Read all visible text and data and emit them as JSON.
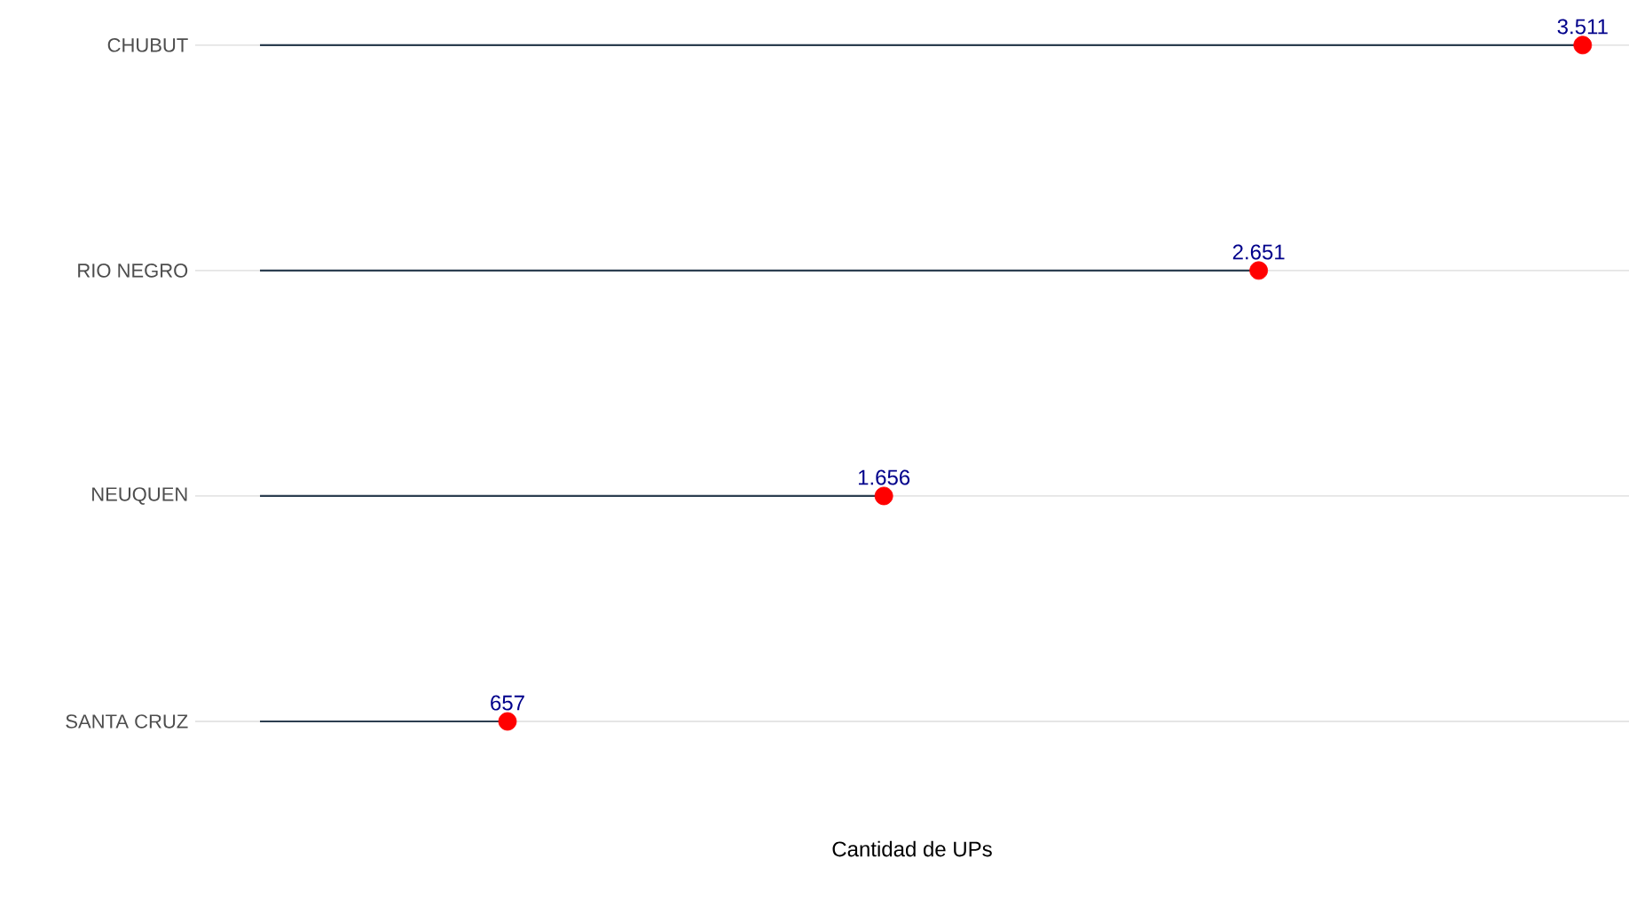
{
  "chart_data": {
    "type": "lollipop",
    "orientation": "horizontal",
    "xlabel": "Cantidad de UPs",
    "categories": [
      "CHUBUT",
      "RIO NEGRO",
      "NEUQUEN",
      "SANTA CRUZ"
    ],
    "values": [
      3511,
      2651,
      1656,
      657
    ],
    "value_labels": [
      "3.511",
      "2.651",
      "1.656",
      "657"
    ],
    "color": "#ff0000",
    "xlim": [
      -172,
      3634
    ],
    "tick_labels": "y",
    "grid": "y",
    "marker": "circle"
  }
}
